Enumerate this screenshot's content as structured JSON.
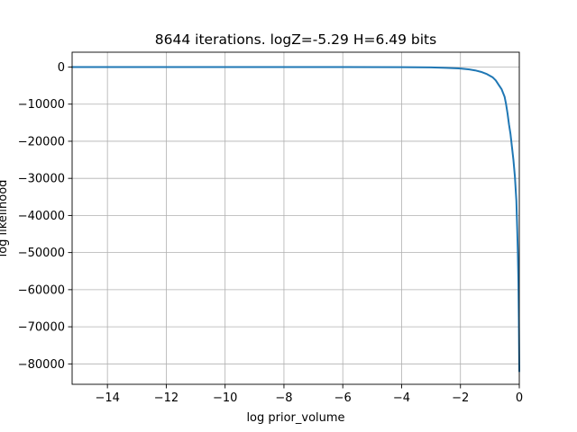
{
  "chart_data": {
    "type": "line",
    "title": "8644 iterations. logZ=-5.29 H=6.49 bits",
    "xlabel": "log prior_volume",
    "ylabel": "log likelihood",
    "xlim": [
      -15.2,
      0
    ],
    "ylim": [
      -85500,
      4000
    ],
    "grid": true,
    "x_ticks": [
      -14,
      -12,
      -10,
      -8,
      -6,
      -4,
      -2,
      0
    ],
    "x_tick_labels": [
      "−14",
      "−12",
      "−10",
      "−8",
      "−6",
      "−4",
      "−2",
      "0"
    ],
    "y_ticks": [
      0,
      -10000,
      -20000,
      -30000,
      -40000,
      -50000,
      -60000,
      -70000,
      -80000
    ],
    "y_tick_labels": [
      "0",
      "−10000",
      "−20000",
      "−30000",
      "−40000",
      "−50000",
      "−60000",
      "−70000",
      "−80000"
    ],
    "series": [
      {
        "color": "#1f77b4",
        "x": [
          -15.2,
          -14,
          -12,
          -10,
          -8,
          -6,
          -4,
          -3,
          -2.5,
          -2,
          -1.7,
          -1.5,
          -1.3,
          -1.1,
          -0.9,
          -0.8,
          -0.7,
          -0.6,
          -0.5,
          -0.45,
          -0.4,
          -0.35,
          -0.3,
          -0.25,
          -0.2,
          -0.15,
          -0.1,
          -0.07,
          -0.05,
          -0.03,
          -0.015,
          0
        ],
        "y": [
          0,
          0,
          0,
          0,
          0,
          0,
          -30,
          -100,
          -200,
          -400,
          -650,
          -900,
          -1300,
          -1900,
          -2800,
          -3600,
          -4800,
          -6000,
          -8000,
          -10000,
          -12500,
          -15500,
          -18000,
          -21500,
          -25000,
          -29500,
          -36000,
          -44000,
          -50000,
          -58000,
          -68000,
          -82000
        ]
      }
    ]
  }
}
